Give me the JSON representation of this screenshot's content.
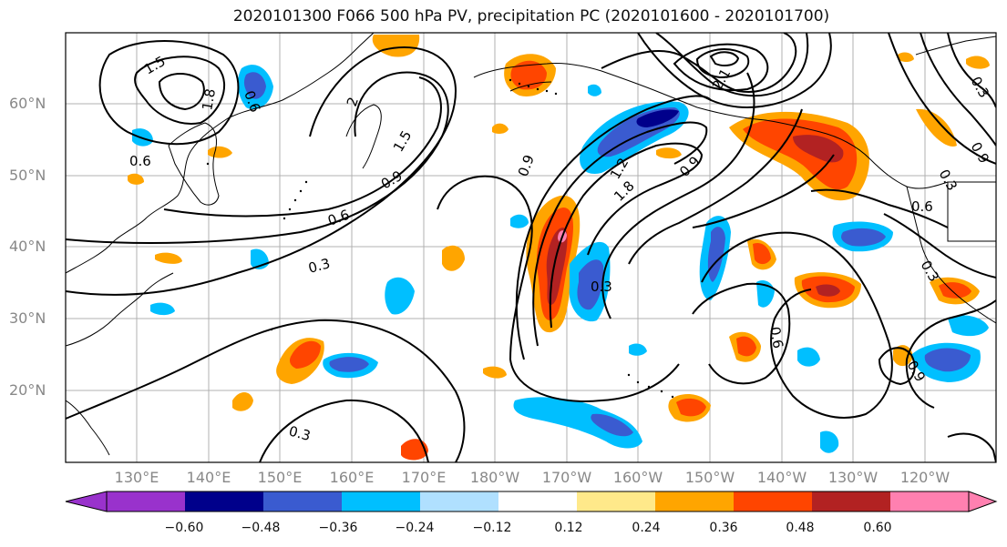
{
  "title": "2020101300 F066 500 hPa PV, precipitation PC (2020101600 - 2020101700)",
  "lat_labels": [
    "60°N",
    "50°N",
    "40°N",
    "30°N",
    "20°N"
  ],
  "lon_labels": [
    "130°E",
    "140°E",
    "150°E",
    "160°E",
    "170°E",
    "180°W",
    "170°W",
    "160°W",
    "150°W",
    "140°W",
    "130°W",
    "120°W"
  ],
  "colorbar": {
    "ticks": [
      "−0.60",
      "−0.48",
      "−0.36",
      "−0.24",
      "−0.12",
      "0.12",
      "0.24",
      "0.36",
      "0.48",
      "0.60"
    ],
    "colors": [
      "#9932cc",
      "#00008b",
      "#3a5bd0",
      "#00bfff",
      "#b0e0ff",
      "#ffffff",
      "#ffe98a",
      "#ffa500",
      "#ff4500",
      "#b22222",
      "#ff80b0"
    ]
  },
  "contour_labels": [
    "1.5",
    "1.8",
    "0.6",
    "2",
    "1.5",
    "0.9",
    "0.6",
    "0.3",
    "0.6",
    "0.3",
    "1.2",
    "1.8",
    "0.9",
    "2.1",
    "0.9",
    "0.3",
    "0.6",
    "0.3",
    "0.9",
    "0.3",
    "0.6",
    "0.9",
    "0.3"
  ]
}
